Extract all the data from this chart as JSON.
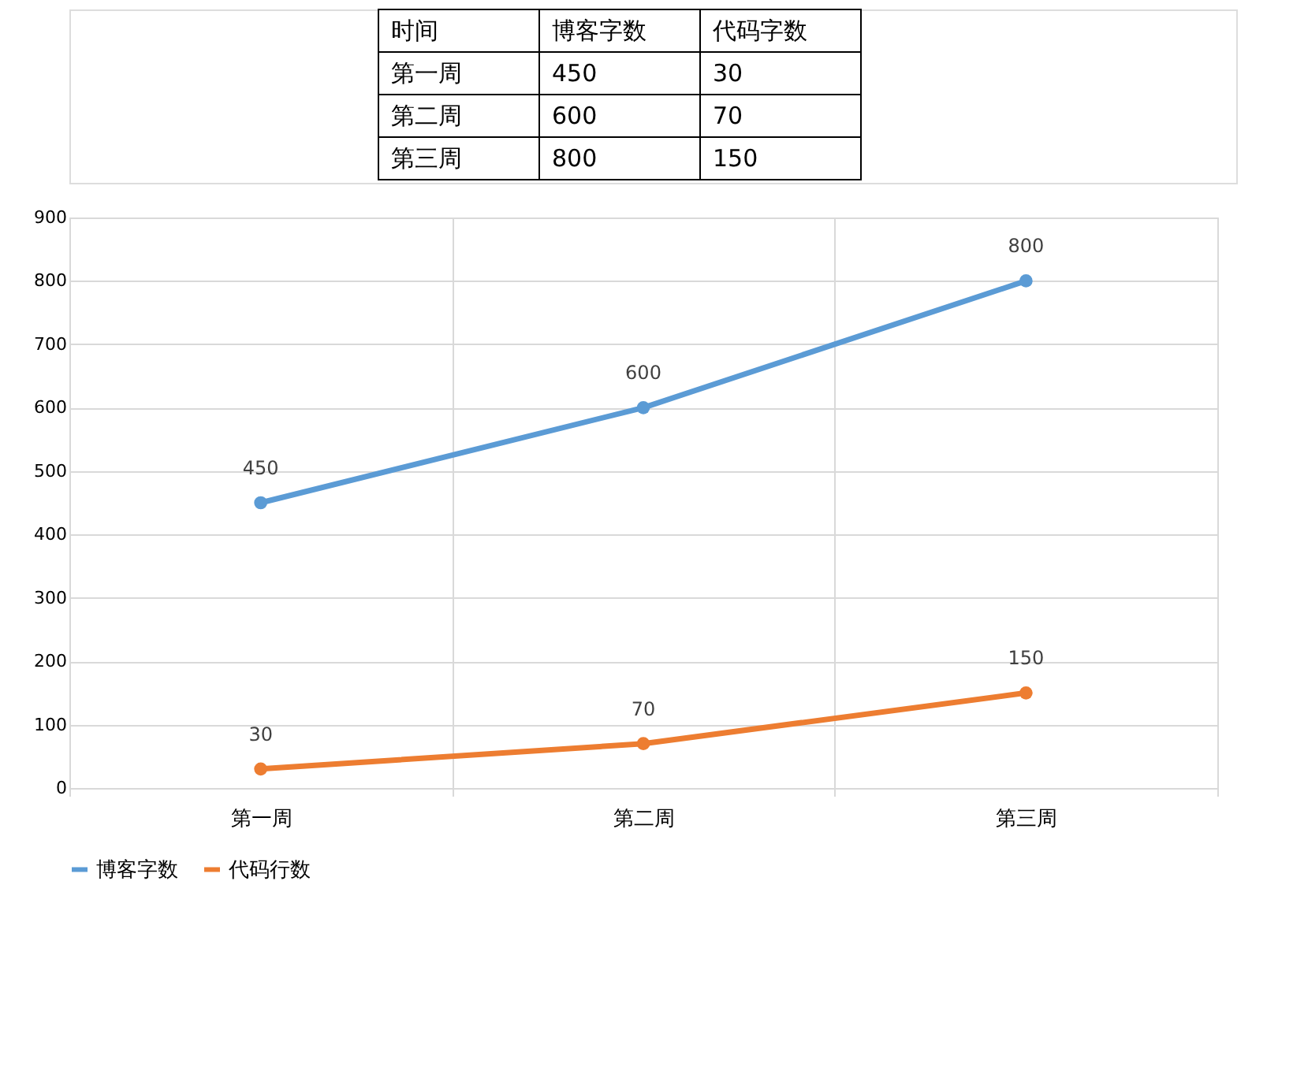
{
  "chart_data": [
    {
      "type": "other",
      "annotations": [
        "时间",
        "博客字数",
        "代码字数",
        "第一周",
        "450",
        "30",
        "第二周",
        "600",
        "70",
        "第三周",
        "800",
        "150"
      ]
    },
    {
      "type": "line",
      "categories": [
        "第一周",
        "第二周",
        "第三周"
      ],
      "series": [
        {
          "name": "博客字数",
          "color": "#5b9bd5",
          "values": [
            450,
            600,
            800
          ]
        },
        {
          "name": "代码行数",
          "color": "#ed7d31",
          "values": [
            30,
            70,
            150
          ]
        }
      ],
      "ylim": [
        0,
        900
      ],
      "yticks": [
        0,
        100,
        200,
        300,
        400,
        500,
        600,
        700,
        800,
        900
      ],
      "grid": true,
      "legend": "bottom",
      "marker": "circle",
      "line_style": "solid",
      "data_labels": true
    }
  ]
}
